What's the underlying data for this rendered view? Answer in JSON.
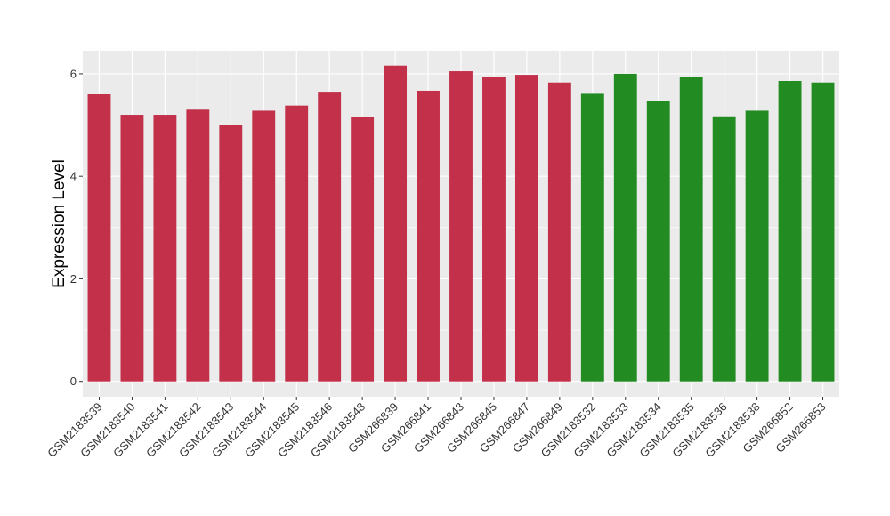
{
  "chart_data": {
    "type": "bar",
    "ylabel": "Expression Level",
    "xlabel": "",
    "ylim": [
      -0.3,
      6.45
    ],
    "yticks": [
      0,
      2,
      4,
      6
    ],
    "grid": true,
    "categories": [
      "GSM2183539",
      "GSM2183540",
      "GSM2183541",
      "GSM2183542",
      "GSM2183543",
      "GSM2183544",
      "GSM2183545",
      "GSM2183546",
      "GSM2183548",
      "GSM266839",
      "GSM266841",
      "GSM266843",
      "GSM266845",
      "GSM266847",
      "GSM266849",
      "GSM2183532",
      "GSM2183533",
      "GSM2183534",
      "GSM2183535",
      "GSM2183536",
      "GSM2183538",
      "GSM266852",
      "GSM266853"
    ],
    "values": [
      5.6,
      5.2,
      5.2,
      5.3,
      5.0,
      5.28,
      5.38,
      5.65,
      5.16,
      6.16,
      5.67,
      6.05,
      5.93,
      5.98,
      5.83,
      5.61,
      6.0,
      5.47,
      5.93,
      5.17,
      5.28,
      5.86,
      5.83
    ],
    "colors": [
      "#C3304A",
      "#C3304A",
      "#C3304A",
      "#C3304A",
      "#C3304A",
      "#C3304A",
      "#C3304A",
      "#C3304A",
      "#C3304A",
      "#C3304A",
      "#C3304A",
      "#C3304A",
      "#C3304A",
      "#C3304A",
      "#C3304A",
      "#228B22",
      "#228B22",
      "#228B22",
      "#228B22",
      "#228B22",
      "#228B22",
      "#228B22",
      "#228B22"
    ],
    "panel_background": "#EBEBEB",
    "grid_color": "#FFFFFF"
  }
}
